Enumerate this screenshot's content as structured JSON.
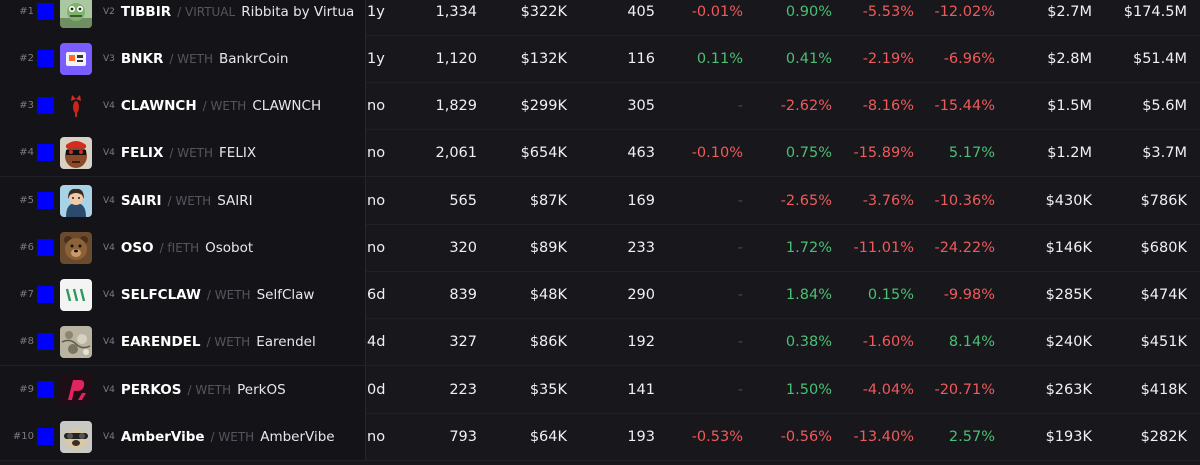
{
  "colors": {
    "positive": "#4bbf73",
    "negative": "#ef5a5a",
    "chain_badge": "#0000ff"
  },
  "rows": [
    {
      "rank": "#1",
      "version": "V2",
      "symbol": "TIBBIR",
      "quote": "/ VIRTUAL",
      "name": "Ribbita by Virtua",
      "age": "1y",
      "txns": "1,334",
      "volume": "$322K",
      "makers": "405",
      "c5m": "-0.01%",
      "c1h": "0.90%",
      "c6h": "-5.53%",
      "c24h": "-12.02%",
      "liquidity": "$2.7M",
      "mcap": "$174.5M",
      "avatar_icon": "frog-avatar-icon"
    },
    {
      "rank": "#2",
      "version": "V3",
      "symbol": "BNKR",
      "quote": "/ WETH",
      "name": "BankrCoin",
      "age": "1y",
      "txns": "1,120",
      "volume": "$132K",
      "makers": "116",
      "c5m": "0.11%",
      "c1h": "0.41%",
      "c6h": "-2.19%",
      "c24h": "-6.96%",
      "liquidity": "$2.8M",
      "mcap": "$51.4M",
      "avatar_icon": "robot-avatar-icon"
    },
    {
      "rank": "#3",
      "version": "V4",
      "symbol": "CLAWNCH",
      "quote": "/ WETH",
      "name": "CLAWNCH",
      "age": "no",
      "txns": "1,829",
      "volume": "$299K",
      "makers": "305",
      "c5m": "-",
      "c1h": "-2.62%",
      "c6h": "-8.16%",
      "c24h": "-15.44%",
      "liquidity": "$1.5M",
      "mcap": "$5.6M",
      "avatar_icon": "lobster-avatar-icon"
    },
    {
      "rank": "#4",
      "version": "V4",
      "symbol": "FELIX",
      "quote": "/ WETH",
      "name": "FELIX",
      "age": "no",
      "txns": "2,061",
      "volume": "$654K",
      "makers": "463",
      "c5m": "-0.10%",
      "c1h": "0.75%",
      "c6h": "-15.89%",
      "c24h": "5.17%",
      "liquidity": "$1.2M",
      "mcap": "$3.7M",
      "avatar_icon": "ape-avatar-icon"
    },
    {
      "rank": "#5",
      "version": "V4",
      "symbol": "SAIRI",
      "quote": "/ WETH",
      "name": "SAIRI",
      "age": "no",
      "txns": "565",
      "volume": "$87K",
      "makers": "169",
      "c5m": "-",
      "c1h": "-2.65%",
      "c6h": "-3.76%",
      "c24h": "-10.36%",
      "liquidity": "$430K",
      "mcap": "$786K",
      "avatar_icon": "girl-avatar-icon"
    },
    {
      "rank": "#6",
      "version": "V4",
      "symbol": "OSO",
      "quote": "/ fIETH",
      "name": "Osobot",
      "age": "no",
      "txns": "320",
      "volume": "$89K",
      "makers": "233",
      "c5m": "-",
      "c1h": "1.72%",
      "c6h": "-11.01%",
      "c24h": "-24.22%",
      "liquidity": "$146K",
      "mcap": "$680K",
      "avatar_icon": "bear-avatar-icon"
    },
    {
      "rank": "#7",
      "version": "V4",
      "symbol": "SELFCLAW",
      "quote": "/ WETH",
      "name": "SelfClaw",
      "age": "6d",
      "txns": "839",
      "volume": "$48K",
      "makers": "290",
      "c5m": "-",
      "c1h": "1.84%",
      "c6h": "0.15%",
      "c24h": "-9.98%",
      "liquidity": "$285K",
      "mcap": "$474K",
      "avatar_icon": "claw-marks-avatar-icon"
    },
    {
      "rank": "#8",
      "version": "V4",
      "symbol": "EARENDEL",
      "quote": "/ WETH",
      "name": "Earendel",
      "age": "4d",
      "txns": "327",
      "volume": "$86K",
      "makers": "192",
      "c5m": "-",
      "c1h": "0.38%",
      "c6h": "-1.60%",
      "c24h": "8.14%",
      "liquidity": "$240K",
      "mcap": "$451K",
      "avatar_icon": "texture-avatar-icon"
    },
    {
      "rank": "#9",
      "version": "V4",
      "symbol": "PERKOS",
      "quote": "/ WETH",
      "name": "PerkOS",
      "age": "0d",
      "txns": "223",
      "volume": "$35K",
      "makers": "141",
      "c5m": "-",
      "c1h": "1.50%",
      "c6h": "-4.04%",
      "c24h": "-20.71%",
      "liquidity": "$263K",
      "mcap": "$418K",
      "avatar_icon": "perk-logo-avatar-icon"
    },
    {
      "rank": "#10",
      "version": "V4",
      "symbol": "AmberVibe",
      "quote": "/ WETH",
      "name": "AmberVibe",
      "age": "no",
      "txns": "793",
      "volume": "$64K",
      "makers": "193",
      "c5m": "-0.53%",
      "c1h": "-0.56%",
      "c6h": "-13.40%",
      "c24h": "2.57%",
      "liquidity": "$193K",
      "mcap": "$282K",
      "avatar_icon": "pug-avatar-icon"
    }
  ]
}
